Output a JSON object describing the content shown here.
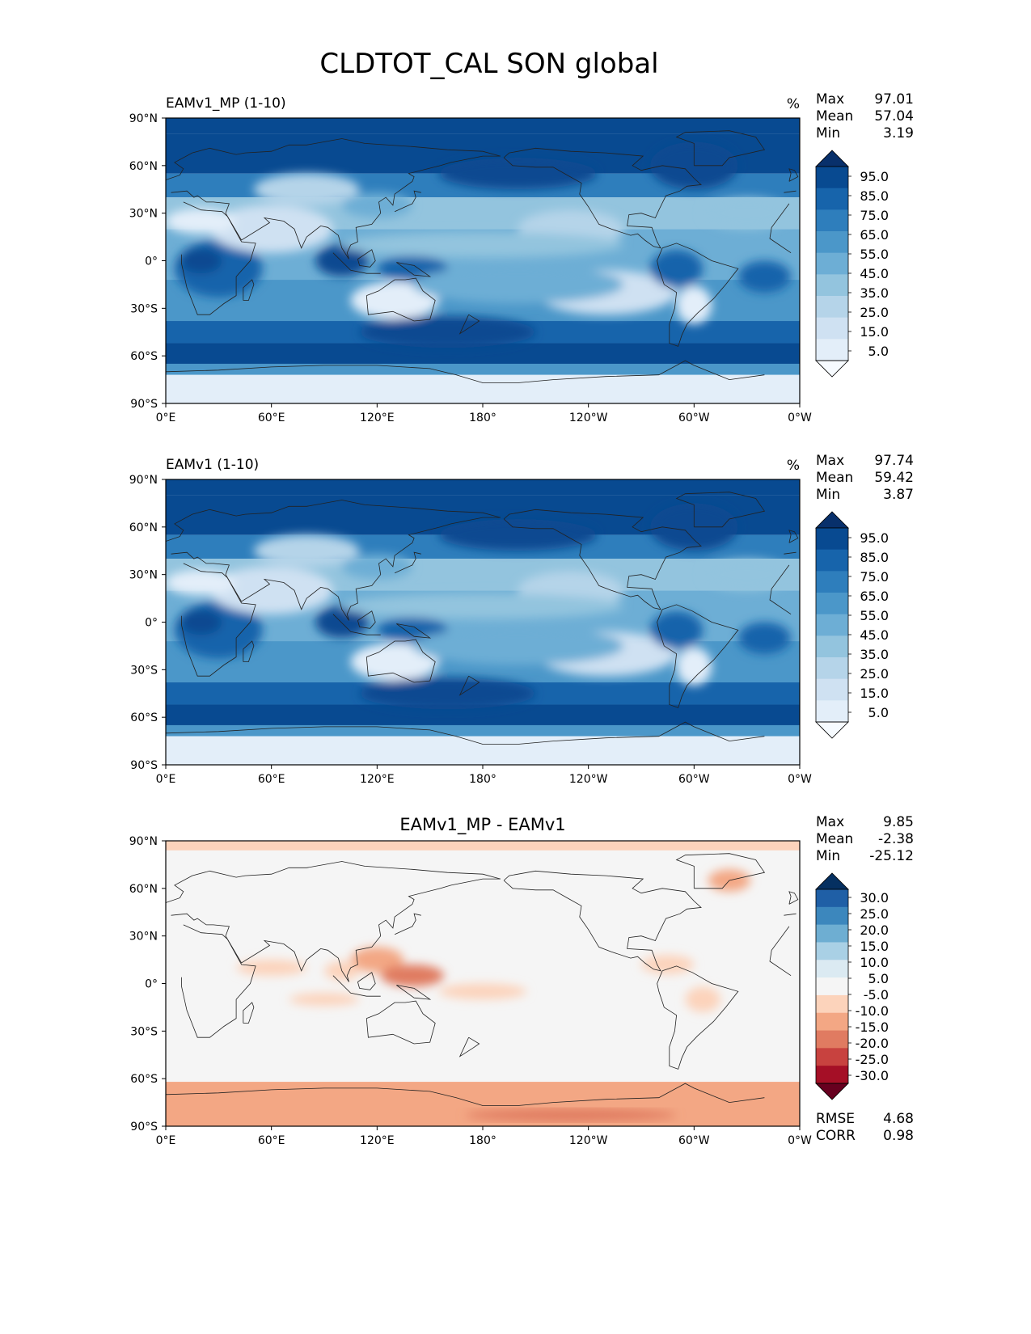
{
  "chart_data": {
    "type": "heatmap",
    "title": "CLDTOT_CAL SON global",
    "panels": [
      {
        "name": "EAMv1_MP (1-10)",
        "title_position": "left",
        "units": "%",
        "stats": [
          {
            "label": "Max",
            "value": "97.01"
          },
          {
            "label": "Mean",
            "value": "57.04"
          },
          {
            "label": "Min",
            "value": "3.19"
          }
        ],
        "colorbar": {
          "ticks": [
            "5.0",
            "15.0",
            "25.0",
            "35.0",
            "45.0",
            "55.0",
            "65.0",
            "75.0",
            "85.0",
            "95.0"
          ],
          "colors": [
            "#f7fbff",
            "#e3eef9",
            "#cfe1f2",
            "#b5d4e9",
            "#93c4de",
            "#6daed5",
            "#4b97c9",
            "#2e7ebc",
            "#1764ab",
            "#084a91",
            "#08306b"
          ]
        },
        "xlim": [
          0,
          360
        ],
        "ylim": [
          -90,
          90
        ]
      },
      {
        "name": "EAMv1 (1-10)",
        "title_position": "left",
        "units": "%",
        "stats": [
          {
            "label": "Max",
            "value": "97.74"
          },
          {
            "label": "Mean",
            "value": "59.42"
          },
          {
            "label": "Min",
            "value": "3.87"
          }
        ],
        "colorbar": {
          "ticks": [
            "5.0",
            "15.0",
            "25.0",
            "35.0",
            "45.0",
            "55.0",
            "65.0",
            "75.0",
            "85.0",
            "95.0"
          ],
          "colors": [
            "#f7fbff",
            "#e3eef9",
            "#cfe1f2",
            "#b5d4e9",
            "#93c4de",
            "#6daed5",
            "#4b97c9",
            "#2e7ebc",
            "#1764ab",
            "#084a91",
            "#08306b"
          ]
        },
        "xlim": [
          0,
          360
        ],
        "ylim": [
          -90,
          90
        ]
      },
      {
        "name": "EAMv1_MP - EAMv1",
        "title_position": "center",
        "units": "",
        "stats": [
          {
            "label": "Max",
            "value": "9.85"
          },
          {
            "label": "Mean",
            "value": "-2.38"
          },
          {
            "label": "Min",
            "value": "-25.12"
          }
        ],
        "colorbar": {
          "ticks": [
            "-30.0",
            "-25.0",
            "-20.0",
            "-15.0",
            "-10.0",
            "-5.0",
            "5.0",
            "10.0",
            "15.0",
            "20.0",
            "25.0",
            "30.0"
          ],
          "colors": [
            "#67001f",
            "#a50f26",
            "#c8423f",
            "#e07b61",
            "#f3a784",
            "#fcd3bb",
            "#f5f5f5",
            "#dbeaf2",
            "#a9d0e5",
            "#6eaed2",
            "#3c87bd",
            "#1f5fa6",
            "#053061"
          ]
        },
        "footer": [
          {
            "label": "RMSE",
            "value": "4.68"
          },
          {
            "label": "CORR",
            "value": "0.98"
          }
        ],
        "xlim": [
          0,
          360
        ],
        "ylim": [
          -90,
          90
        ]
      }
    ],
    "x_ticks": [
      "0°E",
      "60°E",
      "120°E",
      "180°",
      "120°W",
      "60°W",
      "0°W"
    ],
    "y_ticks": [
      "90°N",
      "60°N",
      "30°N",
      "0°",
      "30°S",
      "60°S",
      "90°S"
    ]
  }
}
